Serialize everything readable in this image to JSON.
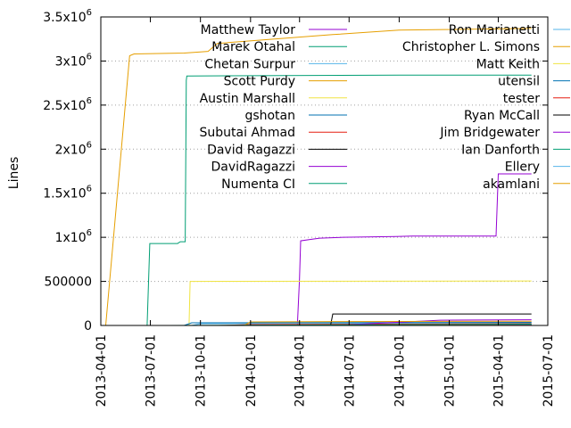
{
  "chart_data": {
    "type": "line",
    "title": "",
    "xlabel": "",
    "ylabel": "Lines",
    "xlim": [
      "2013-04-01",
      "2015-07-01"
    ],
    "ylim": [
      0,
      3500000
    ],
    "grid": "dotted horizontal at labelled y ticks",
    "legend_placement": "top, two columns",
    "x_ticks": [
      "2013-04-01",
      "2013-07-01",
      "2013-10-01",
      "2014-01-01",
      "2014-04-01",
      "2014-07-01",
      "2014-10-01",
      "2015-01-01",
      "2015-04-01",
      "2015-07-01"
    ],
    "y_ticks": [
      {
        "value": 0,
        "label": "0",
        "exp": ""
      },
      {
        "value": 500000,
        "label": "500000",
        "exp": ""
      },
      {
        "value": 1000000,
        "label": "1x10",
        "exp": "6"
      },
      {
        "value": 1500000,
        "label": "1.5x10",
        "exp": "6"
      },
      {
        "value": 2000000,
        "label": "2x10",
        "exp": "6"
      },
      {
        "value": 2500000,
        "label": "2.5x10",
        "exp": "6"
      },
      {
        "value": 3000000,
        "label": "3x10",
        "exp": "6"
      },
      {
        "value": 3500000,
        "label": "3.5x10",
        "exp": "6"
      }
    ],
    "series": [
      {
        "name": "Matthew Taylor",
        "color": "#9400d3",
        "points": [
          [
            "2014-03-28",
            0
          ],
          [
            "2014-04-01",
            530000
          ],
          [
            "2014-04-03",
            960000
          ],
          [
            "2014-04-20",
            975000
          ],
          [
            "2014-05-08",
            990000
          ],
          [
            "2014-06-20",
            1000000
          ],
          [
            "2014-09-25",
            1010000
          ],
          [
            "2014-10-25",
            1015000
          ],
          [
            "2015-03-28",
            1015000
          ],
          [
            "2015-04-01",
            1720000
          ],
          [
            "2015-06-01",
            1720000
          ]
        ]
      },
      {
        "name": "Marek Otahal",
        "color": "#009e73",
        "points": [
          [
            "2014-01-01",
            0
          ],
          [
            "2014-04-01",
            5000
          ],
          [
            "2015-06-01",
            10000
          ]
        ]
      },
      {
        "name": "Chetan Surpur",
        "color": "#56b4e9",
        "points": [
          [
            "2013-09-15",
            0
          ],
          [
            "2013-10-01",
            20000
          ],
          [
            "2014-06-01",
            25000
          ],
          [
            "2015-06-01",
            30000
          ]
        ]
      },
      {
        "name": "Scott Purdy",
        "color": "#e69f00",
        "points": [
          [
            "2013-04-10",
            0
          ],
          [
            "2013-05-24",
            3060000
          ],
          [
            "2013-06-01",
            3080000
          ],
          [
            "2013-09-01",
            3090000
          ],
          [
            "2013-09-25",
            3100000
          ],
          [
            "2013-10-15",
            3110000
          ],
          [
            "2013-11-01",
            3200000
          ],
          [
            "2014-06-01",
            3300000
          ],
          [
            "2014-10-01",
            3350000
          ],
          [
            "2015-06-01",
            3370000
          ]
        ]
      },
      {
        "name": "Austin Marshall",
        "color": "#f0e442",
        "points": [
          [
            "2013-09-10",
            0
          ],
          [
            "2013-09-12",
            500000
          ],
          [
            "2015-06-01",
            505000
          ]
        ]
      },
      {
        "name": "gshotan",
        "color": "#0072b2",
        "points": [
          [
            "2013-09-01",
            0
          ],
          [
            "2013-09-15",
            30000
          ],
          [
            "2015-06-01",
            35000
          ]
        ]
      },
      {
        "name": "Subutai Ahmad",
        "color": "#e51e10",
        "points": [
          [
            "2013-11-01",
            0
          ],
          [
            "2014-01-01",
            10000
          ],
          [
            "2015-06-01",
            20000
          ]
        ]
      },
      {
        "name": "David Ragazzi",
        "color": "#000000",
        "points": [
          [
            "2014-05-28",
            0
          ],
          [
            "2014-06-01",
            130000
          ],
          [
            "2015-06-01",
            130000
          ]
        ]
      },
      {
        "name": "DavidRagazzi",
        "color": "#9400d3",
        "points": [
          [
            "2014-06-01",
            0
          ],
          [
            "2014-12-15",
            60000
          ],
          [
            "2015-06-01",
            65000
          ]
        ]
      },
      {
        "name": "Numenta CI",
        "color": "#009e73",
        "points": [
          [
            "2013-06-25",
            0
          ],
          [
            "2013-06-30",
            930000
          ],
          [
            "2013-08-20",
            930000
          ],
          [
            "2013-08-25",
            950000
          ],
          [
            "2013-09-03",
            950000
          ],
          [
            "2013-09-05",
            2780000
          ],
          [
            "2013-09-06",
            2830000
          ],
          [
            "2014-10-01",
            2840000
          ],
          [
            "2015-06-01",
            2840000
          ]
        ]
      },
      {
        "name": "Ron Marianetti",
        "color": "#56b4e9",
        "points": [
          [
            "2014-01-01",
            0
          ],
          [
            "2015-06-01",
            3000
          ]
        ]
      },
      {
        "name": "Christopher L. Simons",
        "color": "#e69f00",
        "points": [
          [
            "2013-12-20",
            0
          ],
          [
            "2014-01-01",
            40000
          ],
          [
            "2014-07-01",
            45000
          ],
          [
            "2015-06-01",
            48000
          ]
        ]
      },
      {
        "name": "Matt Keith",
        "color": "#f0e442",
        "points": [
          [
            "2014-01-01",
            0
          ],
          [
            "2015-06-01",
            5000
          ]
        ]
      },
      {
        "name": "utensil",
        "color": "#0072b2",
        "points": [
          [
            "2014-01-01",
            0
          ],
          [
            "2015-06-01",
            4000
          ]
        ]
      },
      {
        "name": "tester",
        "color": "#e51e10",
        "points": [
          [
            "2014-01-01",
            0
          ],
          [
            "2015-06-01",
            2000
          ]
        ]
      },
      {
        "name": "Ryan McCall",
        "color": "#000000",
        "points": [
          [
            "2014-01-01",
            0
          ],
          [
            "2015-06-01",
            3000
          ]
        ]
      },
      {
        "name": "Jim Bridgewater",
        "color": "#9400d3",
        "points": [
          [
            "2014-01-01",
            0
          ],
          [
            "2015-06-01",
            2000
          ]
        ]
      },
      {
        "name": "Ian Danforth",
        "color": "#009e73",
        "points": [
          [
            "2013-08-01",
            0
          ],
          [
            "2015-06-01",
            15000
          ]
        ]
      },
      {
        "name": "Ellery",
        "color": "#56b4e9",
        "points": [
          [
            "2014-01-01",
            0
          ],
          [
            "2015-06-01",
            1000
          ]
        ]
      },
      {
        "name": "akamlani",
        "color": "#e69f00",
        "points": [
          [
            "2014-01-01",
            0
          ],
          [
            "2015-06-01",
            1000
          ]
        ]
      }
    ]
  }
}
